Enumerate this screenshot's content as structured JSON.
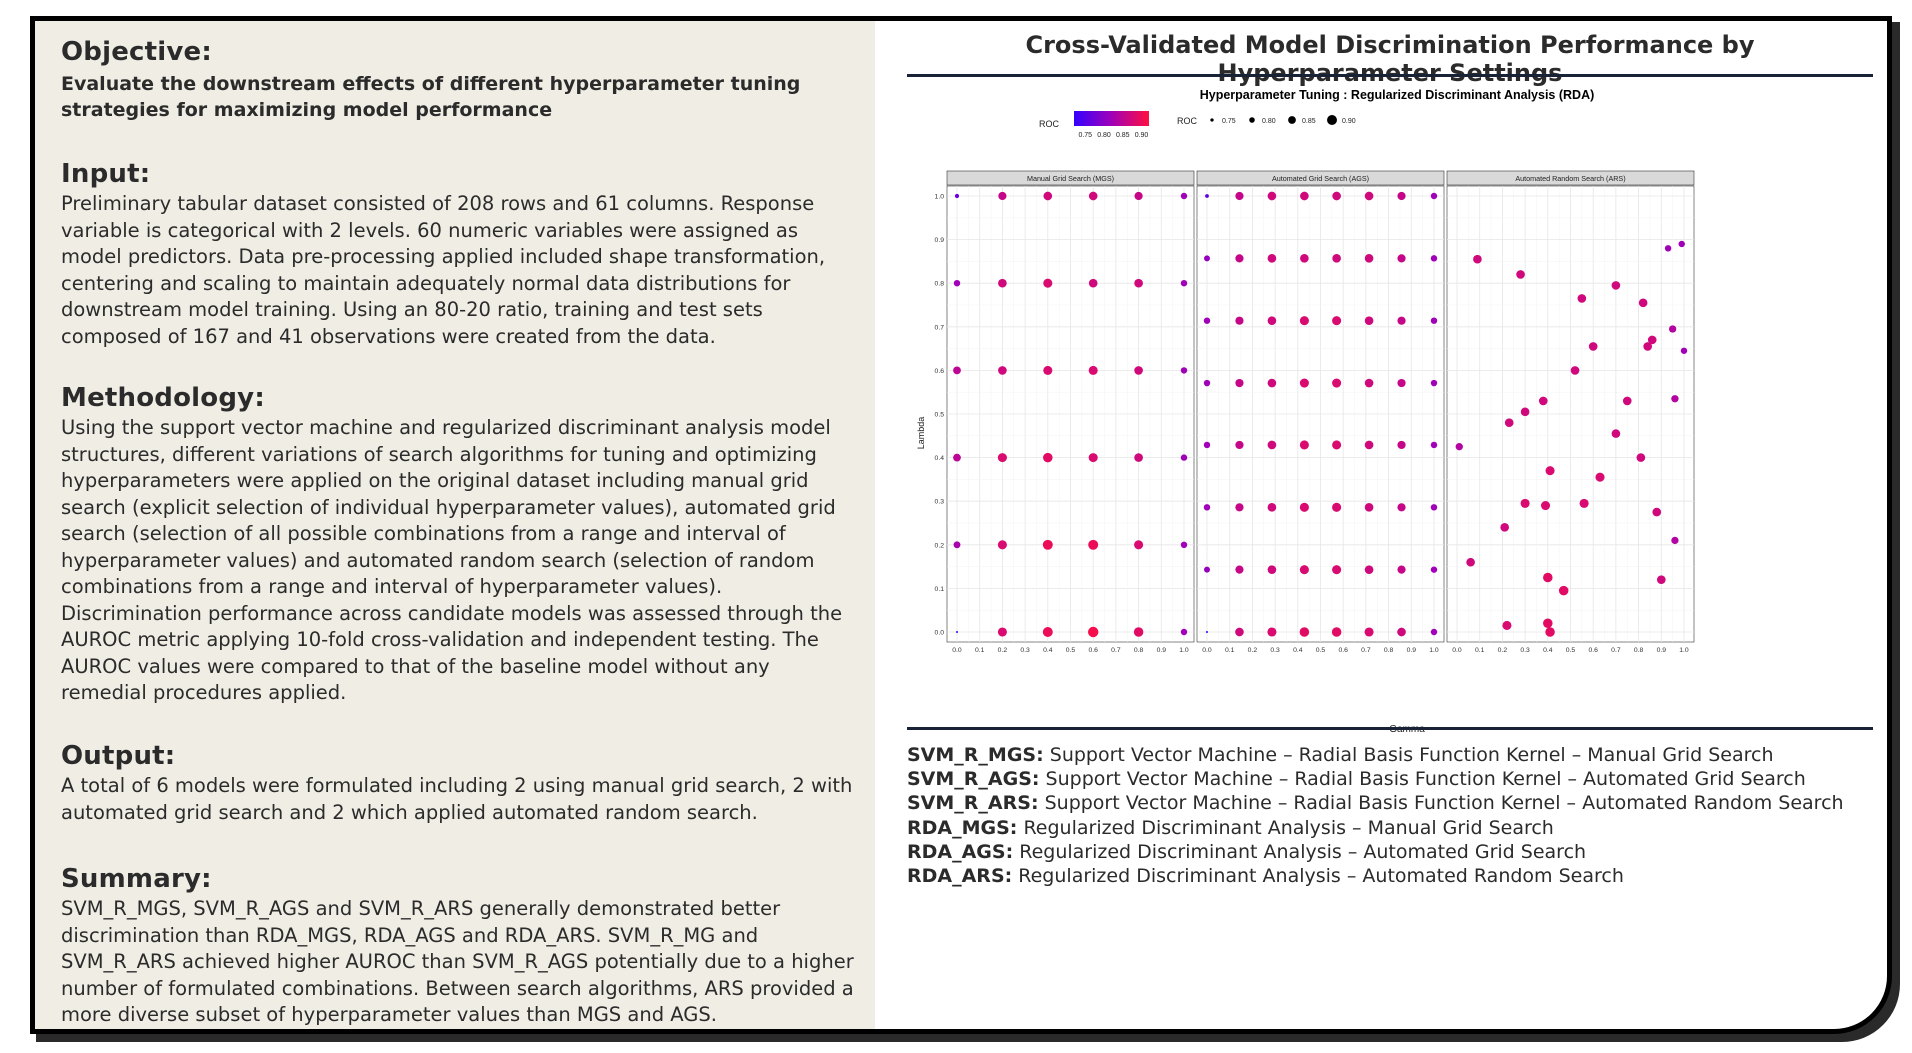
{
  "left": {
    "objective": {
      "heading": "Objective:",
      "text": "Evaluate the downstream effects of different hyperparameter tuning strategies for maximizing model performance"
    },
    "input": {
      "heading": "Input:",
      "text": "Preliminary tabular dataset consisted of 208 rows and 61 columns. Response variable is categorical with 2 levels. 60 numeric variables were assigned as model predictors. Data pre-processing applied included shape transformation, centering and scaling to maintain adequately normal data distributions for downstream model training. Using an 80-20 ratio, training and test sets composed of 167 and 41 observations were created from the data."
    },
    "methodology": {
      "heading": "Methodology:",
      "text": "Using the support vector machine and regularized discriminant analysis model structures, different variations of search algorithms for tuning and optimizing hyperparameters were applied on the original dataset including manual grid search (explicit selection of individual hyperparameter values), automated grid search (selection of all possible combinations from a range and interval of hyperparameter values) and automated random search (selection of random combinations from a range and interval of hyperparameter values). Discrimination performance across candidate models was assessed through the AUROC metric applying 10-fold cross-validation and independent testing. The AUROC values were compared to that of the baseline model without any remedial procedures applied."
    },
    "output": {
      "heading": "Output:",
      "text": "A total of 6 models were formulated including 2 using manual grid search, 2 with automated grid search and 2 which applied automated random search."
    },
    "summary": {
      "heading": "Summary:",
      "text": "SVM_R_MGS, SVM_R_AGS and SVM_R_ARS generally demonstrated better discrimination than RDA_MGS, RDA_AGS and RDA_ARS. SVM_R_MG and SVM_R_ARS achieved higher AUROC than SVM_R_AGS potentially due to a higher number of formulated combinations. Between search algorithms, ARS provided a more diverse subset of hyperparameter values than MGS and AGS."
    }
  },
  "right": {
    "title": "Cross-Validated Model Discrimination Performance by Hyperparameter Settings",
    "abbreviations": [
      {
        "code": "SVM_R_MGS:",
        "desc": "Support Vector Machine – Radial Basis Function Kernel – Manual Grid Search"
      },
      {
        "code": "SVM_R_AGS:",
        "desc": "Support Vector Machine – Radial Basis Function Kernel – Automated Grid Search"
      },
      {
        "code": "SVM_R_ARS:",
        "desc": "Support Vector Machine – Radial Basis Function Kernel – Automated Random Search"
      },
      {
        "code": "RDA_MGS:",
        "desc": "Regularized Discriminant Analysis – Manual Grid Search"
      },
      {
        "code": "RDA_AGS:",
        "desc": "Regularized Discriminant Analysis – Automated Grid Search"
      },
      {
        "code": "RDA_ARS:",
        "desc": "Regularized Discriminant Analysis – Automated Random Search"
      }
    ]
  },
  "colors": {
    "roc_low": "#3300ff",
    "roc_mid": "#a000b8",
    "roc_high": "#ff1040",
    "panel_bg": "#ffffff",
    "strip_bg": "#d9d9d9",
    "rule": "#1a2238",
    "left_bg": "#f0ede4"
  },
  "chart_data": {
    "type": "scatter",
    "title": "Hyperparameter Tuning : Regularized Discriminant Analysis (RDA)",
    "xlabel": "Gamma",
    "ylabel": "Lambda",
    "xlim": [
      0,
      1
    ],
    "ylim": [
      0,
      1
    ],
    "xticks": [
      "0.0",
      "0.1",
      "0.2",
      "0.3",
      "0.4",
      "0.5",
      "0.6",
      "0.7",
      "0.8",
      "0.9",
      "1.0"
    ],
    "yticks": [
      "0.0",
      "0.1",
      "0.2",
      "0.3",
      "0.4",
      "0.5",
      "0.6",
      "0.7",
      "0.8",
      "0.9",
      "1.0"
    ],
    "color_legend": {
      "title": "ROC",
      "ticks": [
        "0.75",
        "0.80",
        "0.85",
        "0.90"
      ],
      "range": [
        0.72,
        0.92
      ]
    },
    "size_legend": {
      "title": "ROC",
      "values": [
        "0.75",
        "0.80",
        "0.85",
        "0.90"
      ]
    },
    "panels": [
      {
        "name": "Manual Grid Search (MGS)",
        "points": [
          [
            0,
            1,
            0.77
          ],
          [
            0.2,
            1,
            0.86
          ],
          [
            0.4,
            1,
            0.87
          ],
          [
            0.6,
            1,
            0.87
          ],
          [
            0.8,
            1,
            0.86
          ],
          [
            1,
            1,
            0.82
          ],
          [
            0,
            0.8,
            0.82
          ],
          [
            0.2,
            0.8,
            0.87
          ],
          [
            0.4,
            0.8,
            0.88
          ],
          [
            0.6,
            0.8,
            0.87
          ],
          [
            0.8,
            0.8,
            0.87
          ],
          [
            1,
            0.8,
            0.82
          ],
          [
            0,
            0.6,
            0.85
          ],
          [
            0.2,
            0.6,
            0.87
          ],
          [
            0.4,
            0.6,
            0.88
          ],
          [
            0.6,
            0.6,
            0.88
          ],
          [
            0.8,
            0.6,
            0.87
          ],
          [
            1,
            0.6,
            0.82
          ],
          [
            0,
            0.4,
            0.85
          ],
          [
            0.2,
            0.4,
            0.88
          ],
          [
            0.4,
            0.4,
            0.89
          ],
          [
            0.6,
            0.4,
            0.88
          ],
          [
            0.8,
            0.4,
            0.87
          ],
          [
            1,
            0.4,
            0.82
          ],
          [
            0,
            0.2,
            0.83
          ],
          [
            0.2,
            0.2,
            0.88
          ],
          [
            0.4,
            0.2,
            0.9
          ],
          [
            0.6,
            0.2,
            0.9
          ],
          [
            0.8,
            0.2,
            0.88
          ],
          [
            1,
            0.2,
            0.82
          ],
          [
            0,
            0,
            0.72
          ],
          [
            0.2,
            0,
            0.88
          ],
          [
            0.4,
            0,
            0.9
          ],
          [
            0.6,
            0,
            0.91
          ],
          [
            0.8,
            0,
            0.89
          ],
          [
            1,
            0,
            0.82
          ]
        ]
      },
      {
        "name": "Automated Grid Search (AGS)",
        "points": [
          [
            0,
            1,
            0.76
          ],
          [
            0.143,
            1,
            0.86
          ],
          [
            0.286,
            1,
            0.87
          ],
          [
            0.429,
            1,
            0.87
          ],
          [
            0.571,
            1,
            0.87
          ],
          [
            0.714,
            1,
            0.87
          ],
          [
            0.857,
            1,
            0.86
          ],
          [
            1,
            1,
            0.82
          ],
          [
            0,
            0.857,
            0.81
          ],
          [
            0.143,
            0.857,
            0.86
          ],
          [
            0.286,
            0.857,
            0.87
          ],
          [
            0.429,
            0.857,
            0.87
          ],
          [
            0.571,
            0.857,
            0.87
          ],
          [
            0.714,
            0.857,
            0.87
          ],
          [
            0.857,
            0.857,
            0.86
          ],
          [
            1,
            0.857,
            0.82
          ],
          [
            0,
            0.714,
            0.82
          ],
          [
            0.143,
            0.714,
            0.86
          ],
          [
            0.286,
            0.714,
            0.87
          ],
          [
            0.429,
            0.714,
            0.88
          ],
          [
            0.571,
            0.714,
            0.88
          ],
          [
            0.714,
            0.714,
            0.87
          ],
          [
            0.857,
            0.714,
            0.86
          ],
          [
            1,
            0.714,
            0.82
          ],
          [
            0,
            0.571,
            0.82
          ],
          [
            0.143,
            0.571,
            0.86
          ],
          [
            0.286,
            0.571,
            0.87
          ],
          [
            0.429,
            0.571,
            0.88
          ],
          [
            0.571,
            0.571,
            0.88
          ],
          [
            0.714,
            0.571,
            0.87
          ],
          [
            0.857,
            0.571,
            0.86
          ],
          [
            1,
            0.571,
            0.82
          ],
          [
            0,
            0.429,
            0.82
          ],
          [
            0.143,
            0.429,
            0.86
          ],
          [
            0.286,
            0.429,
            0.87
          ],
          [
            0.429,
            0.429,
            0.88
          ],
          [
            0.571,
            0.429,
            0.88
          ],
          [
            0.714,
            0.429,
            0.87
          ],
          [
            0.857,
            0.429,
            0.86
          ],
          [
            1,
            0.429,
            0.82
          ],
          [
            0,
            0.286,
            0.82
          ],
          [
            0.143,
            0.286,
            0.86
          ],
          [
            0.286,
            0.286,
            0.87
          ],
          [
            0.429,
            0.286,
            0.88
          ],
          [
            0.571,
            0.286,
            0.88
          ],
          [
            0.714,
            0.286,
            0.87
          ],
          [
            0.857,
            0.286,
            0.86
          ],
          [
            1,
            0.286,
            0.82
          ],
          [
            0,
            0.143,
            0.81
          ],
          [
            0.143,
            0.143,
            0.86
          ],
          [
            0.286,
            0.143,
            0.87
          ],
          [
            0.429,
            0.143,
            0.88
          ],
          [
            0.571,
            0.143,
            0.88
          ],
          [
            0.714,
            0.143,
            0.87
          ],
          [
            0.857,
            0.143,
            0.86
          ],
          [
            1,
            0.143,
            0.82
          ],
          [
            0,
            0,
            0.72
          ],
          [
            0.143,
            0,
            0.87
          ],
          [
            0.286,
            0,
            0.88
          ],
          [
            0.429,
            0,
            0.89
          ],
          [
            0.571,
            0,
            0.89
          ],
          [
            0.714,
            0,
            0.88
          ],
          [
            0.857,
            0,
            0.87
          ],
          [
            1,
            0,
            0.82
          ]
        ]
      },
      {
        "name": "Automated Random Search (ARS)",
        "points": [
          [
            0.09,
            0.855,
            0.87
          ],
          [
            0.28,
            0.82,
            0.87
          ],
          [
            0.93,
            0.88,
            0.82
          ],
          [
            0.99,
            0.89,
            0.82
          ],
          [
            0.55,
            0.765,
            0.87
          ],
          [
            0.7,
            0.795,
            0.87
          ],
          [
            0.82,
            0.755,
            0.87
          ],
          [
            0.6,
            0.655,
            0.87
          ],
          [
            0.84,
            0.655,
            0.87
          ],
          [
            0.86,
            0.67,
            0.87
          ],
          [
            0.95,
            0.695,
            0.84
          ],
          [
            1.0,
            0.645,
            0.82
          ],
          [
            0.52,
            0.6,
            0.87
          ],
          [
            0.38,
            0.53,
            0.87
          ],
          [
            0.3,
            0.505,
            0.87
          ],
          [
            0.23,
            0.48,
            0.87
          ],
          [
            0.75,
            0.53,
            0.87
          ],
          [
            0.96,
            0.535,
            0.84
          ],
          [
            0.7,
            0.455,
            0.87
          ],
          [
            0.01,
            0.425,
            0.84
          ],
          [
            0.81,
            0.4,
            0.87
          ],
          [
            0.41,
            0.37,
            0.88
          ],
          [
            0.63,
            0.355,
            0.88
          ],
          [
            0.3,
            0.295,
            0.88
          ],
          [
            0.39,
            0.29,
            0.88
          ],
          [
            0.56,
            0.295,
            0.88
          ],
          [
            0.88,
            0.275,
            0.87
          ],
          [
            0.21,
            0.24,
            0.87
          ],
          [
            0.96,
            0.21,
            0.84
          ],
          [
            0.06,
            0.16,
            0.87
          ],
          [
            0.4,
            0.125,
            0.89
          ],
          [
            0.9,
            0.12,
            0.87
          ],
          [
            0.47,
            0.095,
            0.89
          ],
          [
            0.22,
            0.015,
            0.88
          ],
          [
            0.4,
            0.02,
            0.89
          ],
          [
            0.41,
            0.0,
            0.89
          ]
        ]
      }
    ]
  }
}
